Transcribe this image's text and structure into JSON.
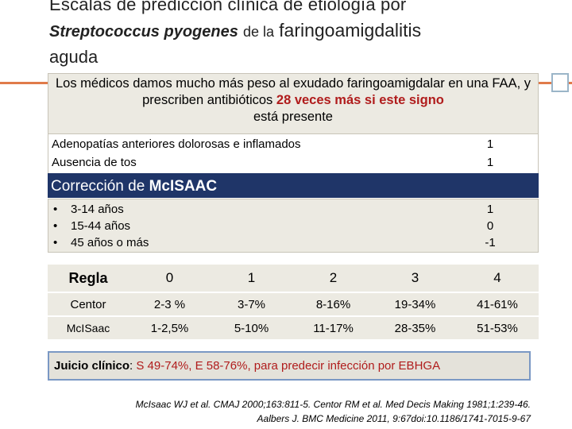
{
  "title": {
    "line1": "Escalas de predicción clínica  de etiología por",
    "species": "Streptococcus pyogenes",
    "de_la": "de la",
    "disease": "faringoamigdalitis",
    "line3": "aguda"
  },
  "callout": {
    "text_a": "Los médicos damos mucho más peso al exudado faringoamigdalar en una FAA, y prescriben antibióticos ",
    "text_red": "28 veces más si este signo",
    "text_b": "está presente"
  },
  "criteria_a": [
    {
      "label": "Adenopatías anteriores dolorosas e inflamados",
      "value": "1"
    },
    {
      "label": "Ausencia de tos",
      "value": "1"
    }
  ],
  "correction": {
    "prefix": "Corrección  de ",
    "name": "McISAAC"
  },
  "age_bullets": [
    {
      "label": "3-14 años",
      "value": "1"
    },
    {
      "label": "15-44 años",
      "value": "0"
    },
    {
      "label": "45 años o más",
      "value": "-1"
    }
  ],
  "table": {
    "header": [
      "Regla",
      "0",
      "1",
      "2",
      "3",
      "4"
    ],
    "rows": [
      [
        "Centor",
        "2-3 %",
        "3-7%",
        "8-16%",
        "19-34%",
        "41-61%"
      ],
      [
        "McISaac",
        "1-2,5%",
        "5-10%",
        "11-17%",
        "28-35%",
        "51-53%"
      ]
    ]
  },
  "juicio": {
    "label": "Juicio clínico",
    "colon": ":",
    "value": " S 49-74%, E 58-76%, para predecir infección por EBHGA"
  },
  "references": {
    "line1": "McIsaac WJ et al. CMAJ 2000;163:811-5. Centor RM et al. Med Decis Making 1981;1:239-46.",
    "line2": "Aalbers J. BMC Medicine 2011, 9:67doi:10.1186/1741-7015-9-67"
  },
  "colors": {
    "accent_line": "#e07b4a",
    "bar_bg": "#1f3568",
    "highlight_red": "#b01c1c",
    "box_bg": "#eceae2",
    "juicio_border": "#7a98c4"
  }
}
